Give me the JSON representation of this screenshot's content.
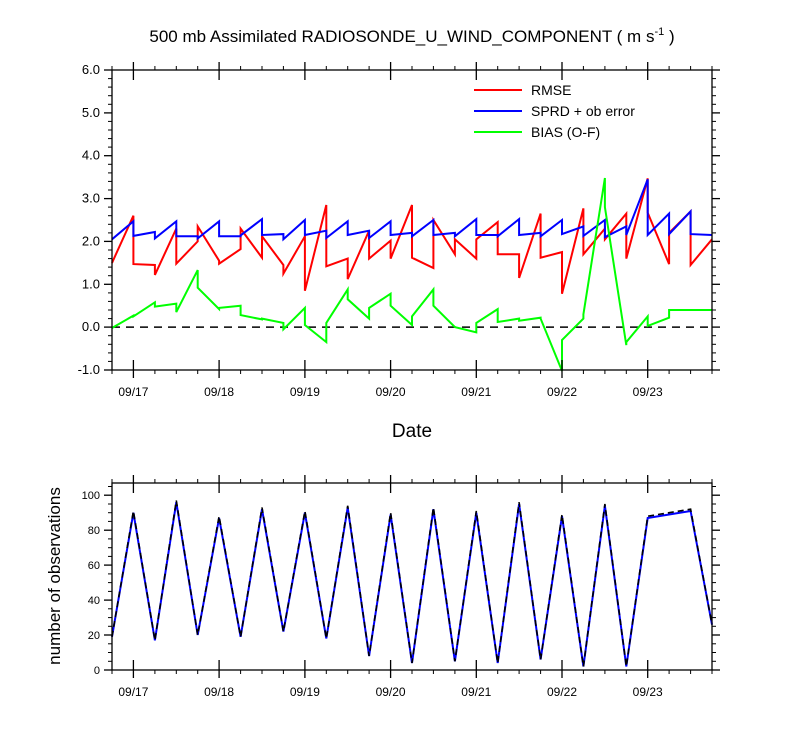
{
  "chart_data": [
    {
      "type": "line",
      "title_main": "500 mb Assimilated RADIOSONDE_U_WIND_COMPONENT ( m s",
      "title_sup": "-1",
      "title_end": " )",
      "xlabel": "Date",
      "ylabel": "",
      "xlim": [
        0,
        7.0
      ],
      "ylim": [
        -1.0,
        6.0
      ],
      "y_ticks": [
        -1.0,
        0.0,
        1.0,
        2.0,
        3.0,
        4.0,
        5.0,
        6.0
      ],
      "y_tick_labels": [
        "-1.0",
        "0.0",
        "1.0",
        "2.0",
        "3.0",
        "4.0",
        "5.0",
        "6.0"
      ],
      "x_tick_positions": [
        0.25,
        1.25,
        2.25,
        3.25,
        4.25,
        5.25,
        6.25
      ],
      "x_tick_labels": [
        "09/17",
        "09/18",
        "09/19",
        "09/20",
        "09/21",
        "09/22",
        "09/23"
      ],
      "zero_line": true,
      "legend": [
        "RMSE",
        "SPRD + ob error",
        "BIAS (O-F)"
      ],
      "series": [
        {
          "name": "RMSE",
          "color": "#ff0000",
          "x": [
            0.0,
            0.25,
            0.25,
            0.5,
            0.5,
            0.75,
            0.75,
            1.0,
            1.0,
            1.25,
            1.25,
            1.5,
            1.5,
            1.75,
            1.75,
            2.0,
            2.0,
            2.25,
            2.25,
            2.5,
            2.5,
            2.75,
            2.75,
            3.0,
            3.0,
            3.25,
            3.25,
            3.5,
            3.5,
            3.75,
            3.75,
            4.0,
            4.0,
            4.25,
            4.25,
            4.5,
            4.5,
            4.75,
            4.75,
            5.0,
            5.0,
            5.25,
            5.25,
            5.5,
            5.5,
            5.75,
            5.75,
            6.0,
            6.0,
            6.25,
            6.25,
            6.5,
            6.5,
            6.75,
            6.75,
            7.0
          ],
          "y": [
            1.5,
            2.6,
            1.47,
            1.45,
            1.22,
            2.3,
            1.48,
            2.0,
            2.35,
            1.55,
            1.48,
            1.82,
            2.3,
            1.62,
            2.12,
            1.45,
            1.25,
            2.12,
            0.85,
            2.85,
            1.42,
            1.6,
            1.12,
            2.25,
            1.6,
            2.02,
            1.6,
            2.85,
            1.62,
            1.38,
            2.5,
            1.7,
            2.05,
            1.6,
            2.05,
            2.45,
            1.7,
            1.7,
            1.15,
            2.65,
            1.62,
            1.75,
            0.78,
            2.77,
            1.7,
            2.3,
            2.05,
            2.65,
            1.6,
            3.47,
            2.67,
            1.47,
            2.2,
            2.7,
            1.45,
            2.05
          ]
        },
        {
          "name": "SPRD + ob error",
          "color": "#0000ff",
          "x": [
            0.0,
            0.25,
            0.25,
            0.5,
            0.5,
            0.75,
            0.75,
            1.0,
            1.0,
            1.25,
            1.25,
            1.5,
            1.5,
            1.75,
            1.75,
            2.0,
            2.0,
            2.25,
            2.25,
            2.5,
            2.5,
            2.75,
            2.75,
            3.0,
            3.0,
            3.25,
            3.25,
            3.5,
            3.5,
            3.75,
            3.75,
            4.0,
            4.0,
            4.25,
            4.25,
            4.5,
            4.5,
            4.75,
            4.75,
            5.0,
            5.0,
            5.25,
            5.25,
            5.5,
            5.5,
            5.75,
            5.75,
            6.0,
            6.0,
            6.25,
            6.25,
            6.5,
            6.5,
            6.75,
            6.75,
            7.0
          ],
          "y": [
            2.05,
            2.47,
            2.13,
            2.22,
            2.07,
            2.47,
            2.12,
            2.12,
            2.07,
            2.47,
            2.12,
            2.12,
            2.14,
            2.52,
            2.15,
            2.17,
            2.05,
            2.5,
            2.15,
            2.25,
            2.08,
            2.47,
            2.15,
            2.25,
            2.08,
            2.47,
            2.15,
            2.2,
            2.12,
            2.5,
            2.15,
            2.2,
            2.12,
            2.52,
            2.15,
            2.15,
            2.12,
            2.52,
            2.15,
            2.2,
            2.12,
            2.5,
            2.17,
            2.35,
            2.13,
            2.5,
            2.1,
            2.35,
            2.15,
            3.45,
            2.15,
            2.65,
            2.17,
            2.7,
            2.17,
            2.15
          ]
        },
        {
          "name": "BIAS (O-F)",
          "color": "#00ff00",
          "x": [
            0.0,
            0.25,
            0.25,
            0.5,
            0.5,
            0.75,
            0.75,
            1.0,
            1.0,
            1.25,
            1.25,
            1.5,
            1.5,
            1.75,
            1.75,
            2.0,
            2.0,
            2.25,
            2.25,
            2.5,
            2.5,
            2.75,
            2.75,
            3.0,
            3.0,
            3.25,
            3.25,
            3.5,
            3.5,
            3.75,
            3.75,
            4.0,
            4.0,
            4.25,
            4.25,
            4.5,
            4.5,
            4.75,
            4.75,
            5.0,
            5.0,
            5.25,
            5.25,
            5.5,
            5.5,
            5.75,
            5.75,
            6.0,
            6.0,
            6.25,
            6.25,
            6.5,
            6.5,
            6.75,
            6.75,
            7.0
          ],
          "y": [
            -0.02,
            0.27,
            0.25,
            0.58,
            0.48,
            0.55,
            0.35,
            1.33,
            0.92,
            0.42,
            0.45,
            0.5,
            0.28,
            0.18,
            0.2,
            0.1,
            -0.05,
            0.45,
            0.05,
            -0.35,
            0.1,
            0.88,
            0.65,
            0.2,
            0.45,
            0.78,
            0.5,
            0.05,
            0.25,
            0.88,
            0.5,
            0.0,
            0.0,
            -0.12,
            0.1,
            0.42,
            0.12,
            0.2,
            0.15,
            0.22,
            0.2,
            -1.02,
            -0.3,
            0.2,
            0.3,
            3.48,
            2.8,
            -0.42,
            -0.35,
            0.25,
            0.03,
            0.22,
            0.4,
            0.4,
            0.4,
            0.4
          ]
        }
      ]
    },
    {
      "type": "line",
      "title": "",
      "xlabel": "",
      "ylabel": "number of observations",
      "xlim": [
        0,
        7.0
      ],
      "ylim": [
        0,
        107
      ],
      "y_ticks": [
        0,
        20,
        40,
        60,
        80,
        100
      ],
      "y_tick_labels": [
        "0",
        "20",
        "40",
        "60",
        "80",
        "100"
      ],
      "x_tick_positions": [
        0.25,
        1.25,
        2.25,
        3.25,
        4.25,
        5.25,
        6.25
      ],
      "x_tick_labels": [
        "09/17",
        "09/18",
        "09/19",
        "09/20",
        "09/21",
        "09/22",
        "09/23"
      ],
      "series": [
        {
          "name": "observations",
          "color": "#0000ff",
          "style": "solid",
          "x": [
            0.0,
            0.25,
            0.5,
            0.75,
            1.0,
            1.25,
            1.5,
            1.75,
            2.0,
            2.25,
            2.5,
            2.75,
            3.0,
            3.25,
            3.5,
            3.75,
            4.0,
            4.25,
            4.5,
            4.75,
            5.0,
            5.25,
            5.5,
            5.75,
            6.0,
            6.25,
            6.5,
            6.75,
            7.0
          ],
          "y": [
            19,
            90,
            17,
            96,
            20,
            87,
            19,
            92,
            22,
            90,
            18,
            93,
            8,
            89,
            4,
            92,
            5,
            90,
            4,
            95,
            6,
            88,
            2,
            94,
            2,
            87,
            89,
            91,
            26
          ]
        },
        {
          "name": "observations (dashed)",
          "color": "#000000",
          "style": "dashed",
          "x": [
            0.0,
            0.25,
            0.5,
            0.75,
            1.0,
            1.25,
            1.5,
            1.75,
            2.0,
            2.25,
            2.5,
            2.75,
            3.0,
            3.25,
            3.5,
            3.75,
            4.0,
            4.25,
            4.5,
            4.75,
            5.0,
            5.25,
            5.5,
            5.75,
            6.0,
            6.25,
            6.5,
            6.75,
            7.0
          ],
          "y": [
            19,
            91,
            17,
            97,
            20,
            88,
            19,
            93,
            22,
            91,
            18,
            94,
            8,
            90,
            4,
            93,
            5,
            91,
            4,
            96,
            6,
            89,
            2,
            95,
            2,
            88,
            90,
            92,
            26
          ]
        }
      ]
    }
  ]
}
